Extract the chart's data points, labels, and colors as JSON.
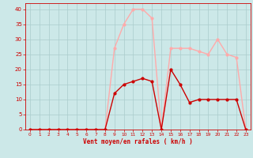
{
  "x": [
    0,
    1,
    2,
    3,
    4,
    5,
    6,
    7,
    8,
    9,
    10,
    11,
    12,
    13,
    14,
    15,
    16,
    17,
    18,
    19,
    20,
    21,
    22,
    23
  ],
  "y_moyen": [
    0,
    0,
    0,
    0,
    0,
    0,
    0,
    0,
    0,
    12,
    15,
    16,
    17,
    16,
    0,
    20,
    15,
    9,
    10,
    10,
    10,
    10,
    10,
    0
  ],
  "y_rafales": [
    0,
    0,
    0,
    0,
    0,
    0,
    0,
    0,
    0,
    27,
    35,
    40,
    40,
    37,
    0,
    27,
    27,
    27,
    26,
    25,
    30,
    25,
    24,
    0
  ],
  "color_moyen": "#cc0000",
  "color_rafales": "#ffaaaa",
  "bg_color": "#cce8e8",
  "grid_color": "#aacccc",
  "xlabel": "Vent moyen/en rafales ( km/h )",
  "ylabel_ticks": [
    0,
    5,
    10,
    15,
    20,
    25,
    30,
    35,
    40
  ],
  "ylim": [
    0,
    42
  ],
  "xlim": [
    -0.5,
    23.5
  ],
  "xlabel_color": "#cc0000",
  "tick_color": "#cc0000",
  "marker_size": 2,
  "linewidth": 1.0
}
